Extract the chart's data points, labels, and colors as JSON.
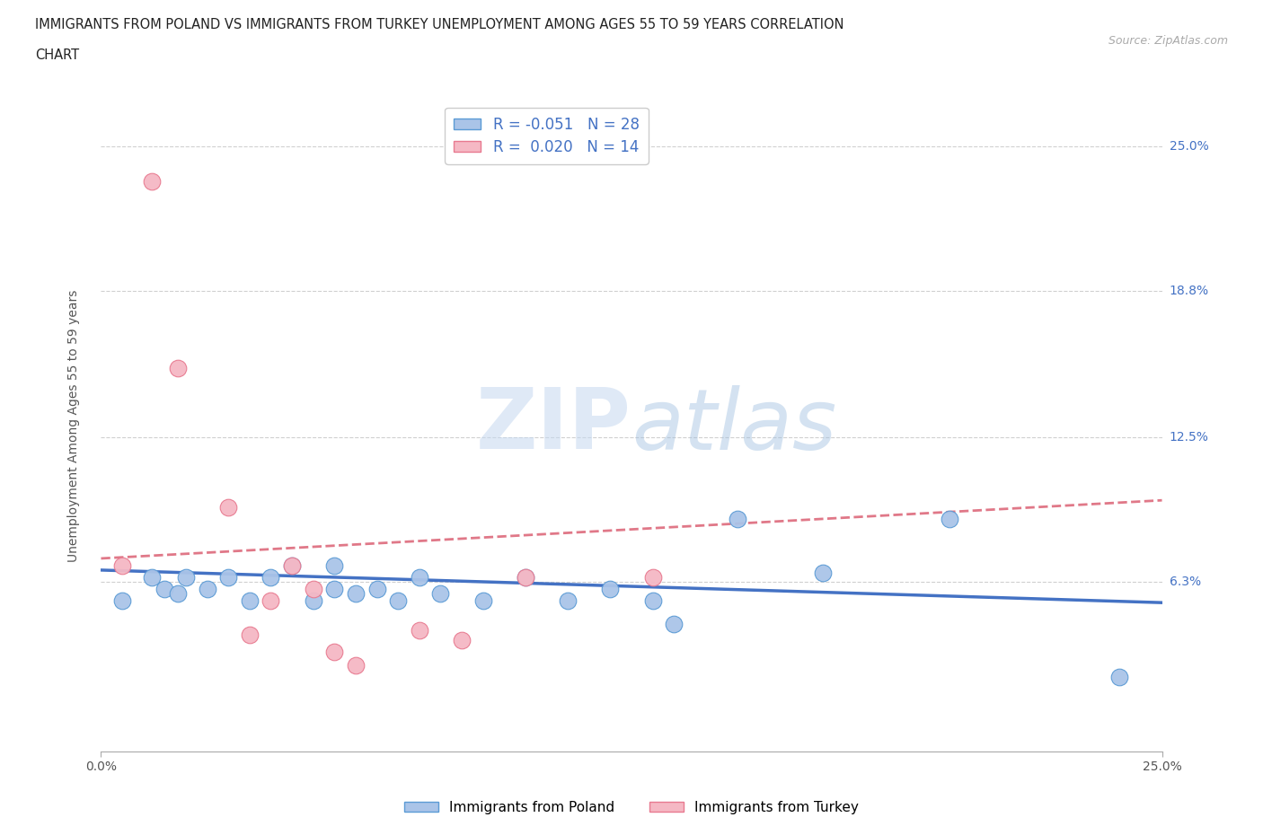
{
  "title_line1": "IMMIGRANTS FROM POLAND VS IMMIGRANTS FROM TURKEY UNEMPLOYMENT AMONG AGES 55 TO 59 YEARS CORRELATION",
  "title_line2": "CHART",
  "source": "Source: ZipAtlas.com",
  "ylabel": "Unemployment Among Ages 55 to 59 years",
  "xlim": [
    0.0,
    0.25
  ],
  "ylim": [
    -0.01,
    0.27
  ],
  "yticks": [
    0.063,
    0.125,
    0.188,
    0.25
  ],
  "ytick_labels": [
    "6.3%",
    "12.5%",
    "18.8%",
    "25.0%"
  ],
  "ytick_right_extra": {
    "val": 0.25,
    "label": "25.0%"
  },
  "xticks": [
    0.0,
    0.25
  ],
  "xtick_labels": [
    "0.0%",
    "25.0%"
  ],
  "poland_R": -0.051,
  "poland_N": 28,
  "turkey_R": 0.02,
  "turkey_N": 14,
  "poland_color": "#aac4e8",
  "turkey_color": "#f5b8c4",
  "poland_edge_color": "#5b9bd5",
  "turkey_edge_color": "#e87a90",
  "poland_line_color": "#4472c4",
  "turkey_line_color": "#e07888",
  "poland_x": [
    0.005,
    0.012,
    0.015,
    0.018,
    0.02,
    0.025,
    0.03,
    0.035,
    0.04,
    0.045,
    0.05,
    0.055,
    0.055,
    0.06,
    0.065,
    0.07,
    0.075,
    0.08,
    0.09,
    0.1,
    0.11,
    0.12,
    0.13,
    0.135,
    0.15,
    0.17,
    0.2,
    0.24
  ],
  "poland_y": [
    0.055,
    0.065,
    0.06,
    0.058,
    0.065,
    0.06,
    0.065,
    0.055,
    0.065,
    0.07,
    0.055,
    0.06,
    0.07,
    0.058,
    0.06,
    0.055,
    0.065,
    0.058,
    0.055,
    0.065,
    0.055,
    0.06,
    0.055,
    0.045,
    0.09,
    0.067,
    0.09,
    0.022
  ],
  "turkey_x": [
    0.005,
    0.012,
    0.018,
    0.03,
    0.035,
    0.04,
    0.045,
    0.05,
    0.055,
    0.06,
    0.075,
    0.085,
    0.1,
    0.13
  ],
  "turkey_y": [
    0.07,
    0.235,
    0.155,
    0.095,
    0.04,
    0.055,
    0.07,
    0.06,
    0.033,
    0.027,
    0.042,
    0.038,
    0.065,
    0.065
  ],
  "poland_trend_x": [
    0.0,
    0.25
  ],
  "poland_trend_y": [
    0.068,
    0.054
  ],
  "turkey_trend_x": [
    0.0,
    0.25
  ],
  "turkey_trend_y": [
    0.073,
    0.098
  ]
}
